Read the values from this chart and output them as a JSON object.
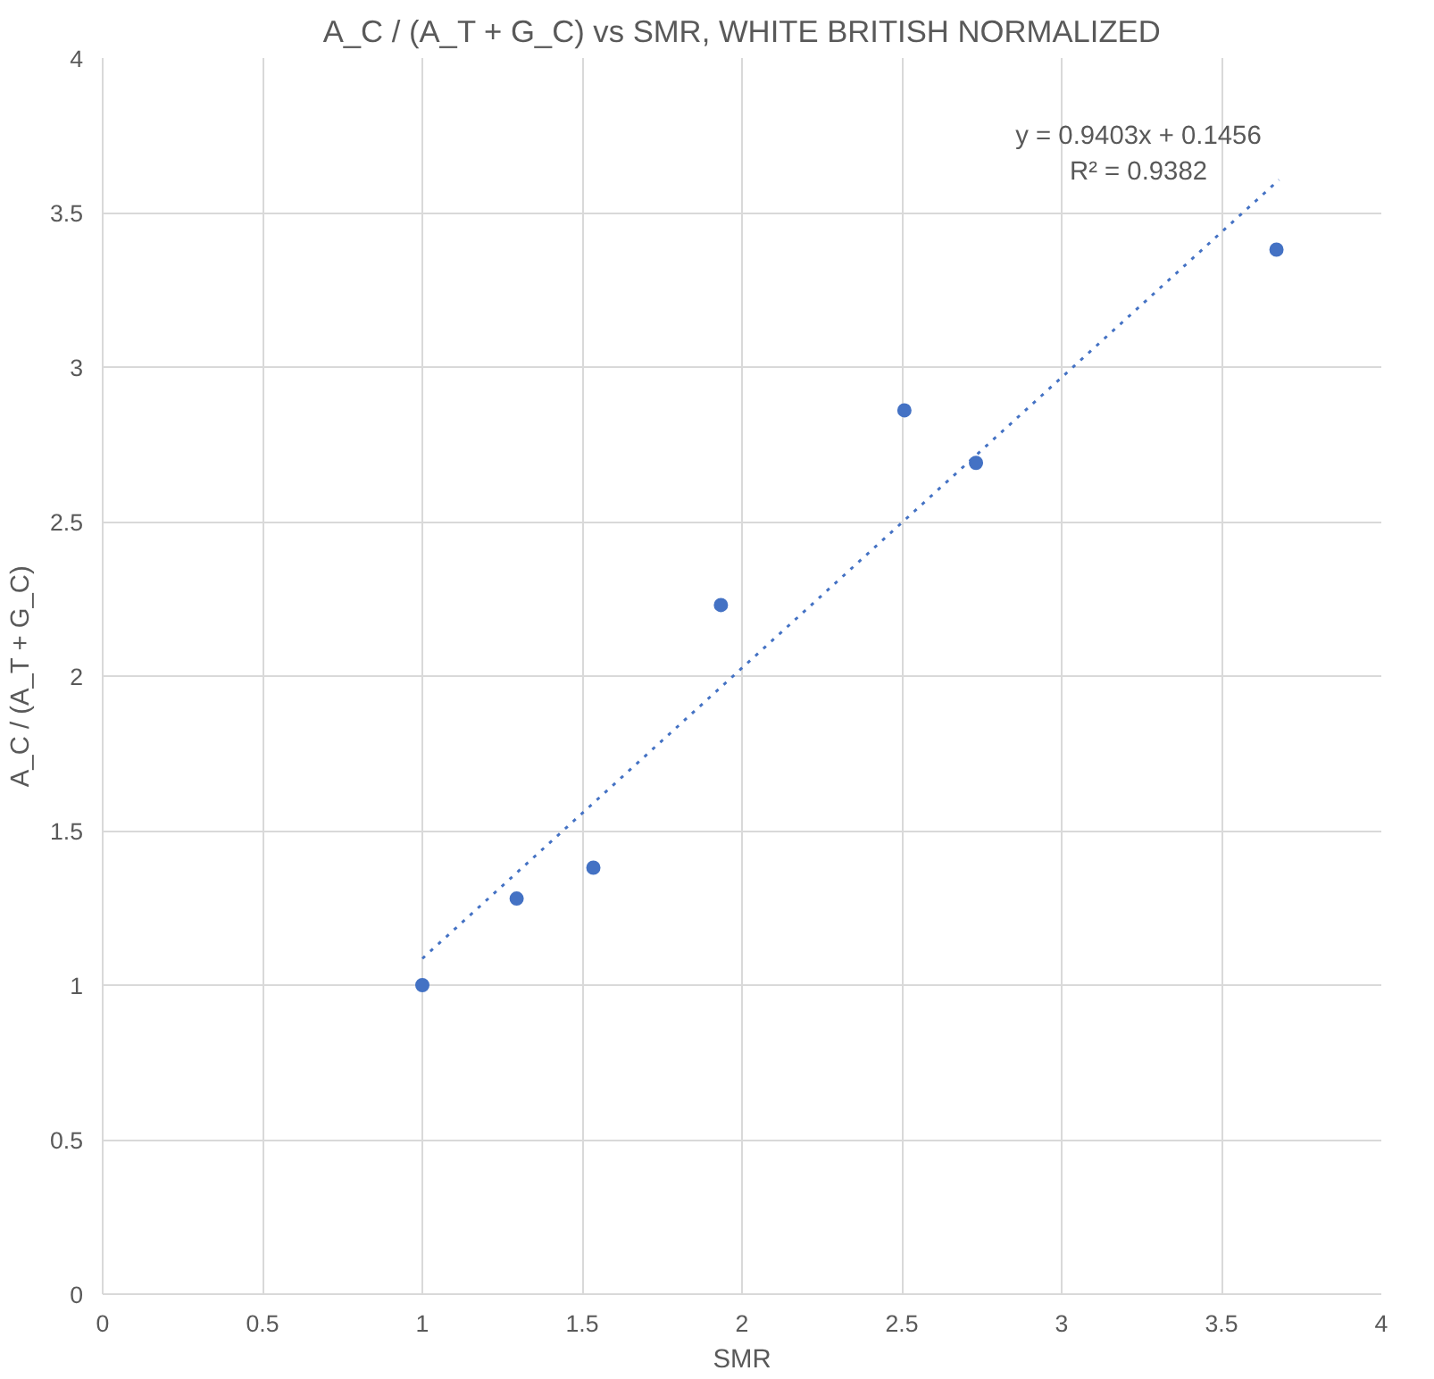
{
  "chart_data": {
    "type": "scatter",
    "title": "A_C / (A_T + G_C) vs SMR, WHITE BRITISH NORMALIZED",
    "xlabel": "SMR",
    "ylabel": "A_C / (A_T + G_C)",
    "xlim": [
      0,
      4
    ],
    "ylim": [
      0,
      4
    ],
    "xticks": [
      0,
      0.5,
      1,
      1.5,
      2,
      2.5,
      3,
      3.5,
      4
    ],
    "yticks": [
      0,
      0.5,
      1,
      1.5,
      2,
      2.5,
      3,
      3.5,
      4
    ],
    "grid": true,
    "series": [
      {
        "color": "#4472c4",
        "marker": "circle",
        "x": [
          1.0,
          1.295,
          1.535,
          1.934,
          2.508,
          2.732,
          3.672
        ],
        "values": [
          1.0,
          1.28,
          1.38,
          2.23,
          2.86,
          2.69,
          3.38
        ]
      },
      {
        "type": "line",
        "color": "#4472c4",
        "line_style": "dotted",
        "x": [
          1.0,
          3.68
        ],
        "values": [
          1.086,
          3.606
        ]
      }
    ],
    "annotations": [
      "y = 0.9403x + 0.1456",
      "R² = 0.9382"
    ]
  }
}
